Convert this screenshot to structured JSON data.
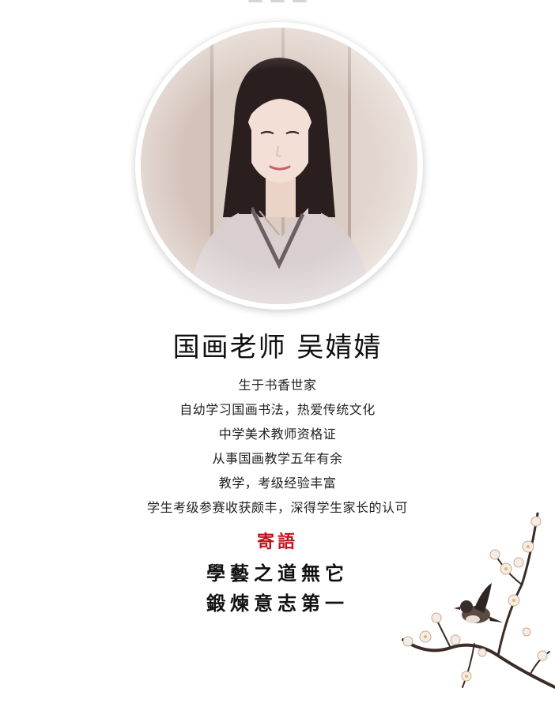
{
  "profile": {
    "title": "国画老师 吴婧婧"
  },
  "bio": {
    "lines": [
      "生于书香世家",
      "自幼学习国画书法，热爱传统文化",
      "中学美术教师资格证",
      "从事国画教学五年有余",
      "教学，考级经验丰富",
      "学生考级参赛收获颇丰，深得学生家长的认可"
    ]
  },
  "motto": {
    "heading": "寄語",
    "lines": [
      "學藝之道無它",
      "鍛煉意志第一"
    ]
  },
  "colors": {
    "accent_red": "#c0141c",
    "text": "#1a1a1a",
    "background": "#ffffff"
  }
}
